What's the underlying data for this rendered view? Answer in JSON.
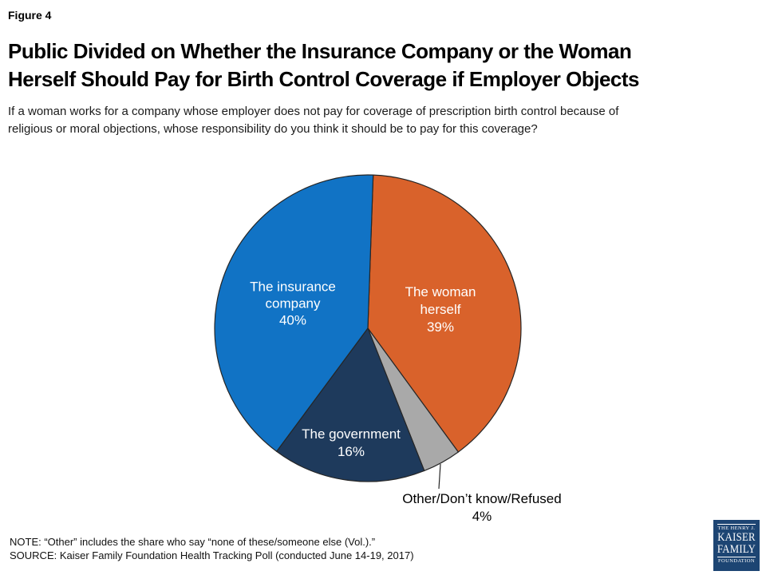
{
  "header": {
    "figure_label": "Figure 4",
    "title_lines": [
      "Public Divided on Whether the Insurance Company or the Woman",
      "Herself Should Pay for Birth Control Coverage if Employer Objects"
    ],
    "subtitle_lines": [
      "If a woman works for a company whose employer does not pay for coverage of prescription birth control because of",
      "religious or moral objections, whose responsibility do you think it should be to pay for this coverage?"
    ]
  },
  "chart_data": {
    "type": "pie",
    "title": "Public Divided on Whether the Insurance Company or the Woman Herself Should Pay for Birth Control Coverage if Employer Objects",
    "start_angle_deg": 2,
    "direction": "clockwise",
    "outline_color": "#262626",
    "slices": [
      {
        "id": "woman-herself",
        "label": "The woman herself",
        "value": 39,
        "color": "#D9622B",
        "label_lines": [
          "The woman",
          "herself",
          "39%"
        ]
      },
      {
        "id": "other-dont-know-refused",
        "label": "Other/Don’t know/Refused",
        "value": 4,
        "color": "#A9A9A9",
        "label_lines": [
          "Other/Don’t know/Refused",
          "4%"
        ]
      },
      {
        "id": "government",
        "label": "The government",
        "value": 16,
        "color": "#1E3A5C",
        "label_lines": [
          "The government",
          "16%"
        ]
      },
      {
        "id": "insurance-company",
        "label": "The insurance company",
        "value": 40,
        "color": "#1173C5",
        "label_lines": [
          "The insurance",
          "company",
          "40%"
        ]
      }
    ]
  },
  "footer": {
    "note": "NOTE: “Other” includes the share who say “none of these/someone else (Vol.).”",
    "source": "SOURCE: Kaiser Family Foundation Health Tracking Poll (conducted June 14-19, 2017)"
  },
  "logo": {
    "top": "THE HENRY J.",
    "kaiser": "KAISER",
    "family": "FAMILY",
    "foundation": "FOUNDATION",
    "background_color": "#1D4573"
  }
}
